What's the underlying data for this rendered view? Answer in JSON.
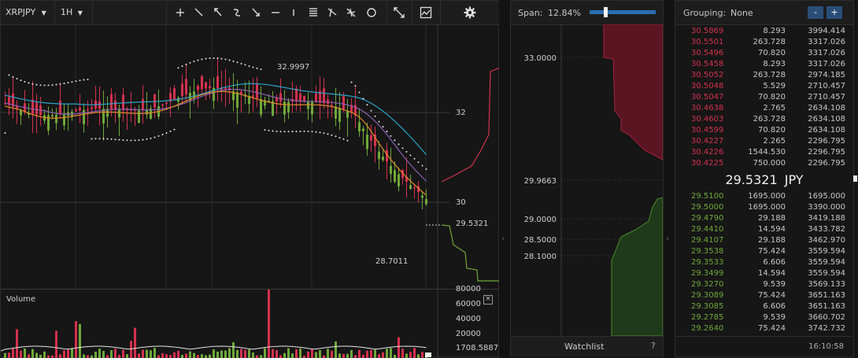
{
  "toolbar": {
    "symbol": "XRPJPY",
    "interval": "1H",
    "tools": [
      "plus-tool",
      "line-tool",
      "arrow-tool",
      "curve-tool",
      "down-arrow-tool",
      "hline-tool",
      "vline-tool",
      "fib-tool",
      "brush-tool",
      "pitchfork-tool",
      "circle-tool"
    ]
  },
  "chart": {
    "high_label": "32.9997",
    "low_label": "28.7011",
    "last_price_label": "29.5321",
    "y_ticks": [
      "32",
      "30"
    ],
    "volume_title": "Volume",
    "volume_ticks": [
      "80000",
      "60000",
      "40000",
      "20000"
    ],
    "volume_last": "1708.5887"
  },
  "depth": {
    "span_label": "Span:",
    "span_value": "12.84%",
    "span_fraction": 0.22,
    "ticks": [
      "33.0000",
      "29.9663",
      "29.0000",
      "28.5000",
      "28.1000"
    ],
    "watchlist_label": "Watchlist",
    "help_label": "?"
  },
  "orderbook": {
    "grouping_label": "Grouping:",
    "grouping_value": "None",
    "minus": "-",
    "plus": "+",
    "asks": [
      [
        "30.5869",
        "8.293",
        "3994.414"
      ],
      [
        "30.5501",
        "263.728",
        "3317.026"
      ],
      [
        "30.5496",
        "70.820",
        "3317.026"
      ],
      [
        "30.5458",
        "8.293",
        "3317.026"
      ],
      [
        "30.5052",
        "263.728",
        "2974.185"
      ],
      [
        "30.5048",
        "5.529",
        "2710.457"
      ],
      [
        "30.5047",
        "70.820",
        "2710.457"
      ],
      [
        "30.4638",
        "2.765",
        "2634.108"
      ],
      [
        "30.4603",
        "263.728",
        "2634.108"
      ],
      [
        "30.4599",
        "70.820",
        "2634.108"
      ],
      [
        "30.4227",
        "2.265",
        "2296.795"
      ],
      [
        "30.4226",
        "1544.530",
        "2296.795"
      ],
      [
        "30.4225",
        "750.000",
        "2296.795"
      ]
    ],
    "mid_price": "29.5321",
    "mid_currency": "JPY",
    "bids": [
      [
        "29.5100",
        "1695.000",
        "1695.000"
      ],
      [
        "29.5000",
        "1695.000",
        "3390.000"
      ],
      [
        "29.4790",
        "29.188",
        "3419.188"
      ],
      [
        "29.4410",
        "14.594",
        "3433.782"
      ],
      [
        "29.4107",
        "29.188",
        "3462.970"
      ],
      [
        "29.3538",
        "75.424",
        "3559.594"
      ],
      [
        "29.3533",
        "6.606",
        "3559.594"
      ],
      [
        "29.3499",
        "14.594",
        "3559.594"
      ],
      [
        "29.3270",
        "9.539",
        "3569.133"
      ],
      [
        "29.3089",
        "75.424",
        "3651.163"
      ],
      [
        "29.3085",
        "6.606",
        "3651.163"
      ],
      [
        "29.2785",
        "9.539",
        "3660.702"
      ],
      [
        "29.2640",
        "75.424",
        "3742.732"
      ]
    ],
    "time": "16:10:58"
  },
  "colors": {
    "up": "#6fa83a",
    "down": "#d4314e",
    "accent": "#2a6fb0"
  }
}
